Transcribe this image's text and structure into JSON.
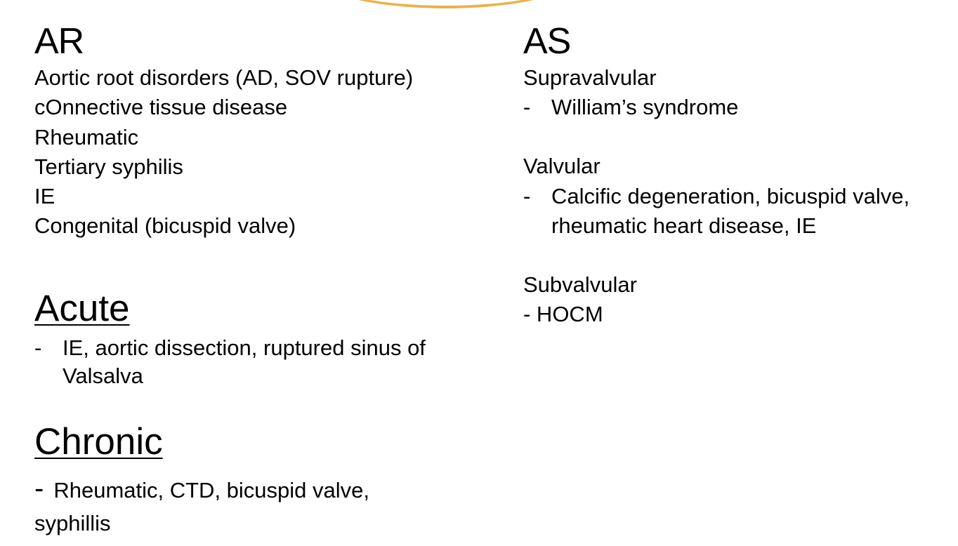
{
  "ar": {
    "title": "AR",
    "causes": [
      "Aortic root disorders (AD, SOV rupture)",
      "cOnnective tissue disease",
      "Rheumatic",
      "Tertiary syphilis",
      "IE",
      "Congenital (bicuspid valve)"
    ],
    "acute": {
      "title": "Acute",
      "dash": "-",
      "item": "IE, aortic dissection, ruptured sinus of Valsalva"
    },
    "chronic": {
      "title": "Chronic",
      "dash": "-",
      "item": "Rheumatic, CTD, bicuspid valve,",
      "item_cont": "syphillis"
    }
  },
  "as": {
    "title": "AS",
    "supravalvular": {
      "title": "Supravalvular",
      "dash": "-",
      "item": "William’s syndrome"
    },
    "valvular": {
      "title": "Valvular",
      "dash": "-",
      "item": "Calcific degeneration, bicuspid valve, rheumatic heart disease, IE"
    },
    "subvalvular": {
      "title": "Subvalvular",
      "item": "- HOCM"
    }
  },
  "colors": {
    "text": "#000000",
    "accent_arc": "#eab24a",
    "background": "#ffffff"
  }
}
